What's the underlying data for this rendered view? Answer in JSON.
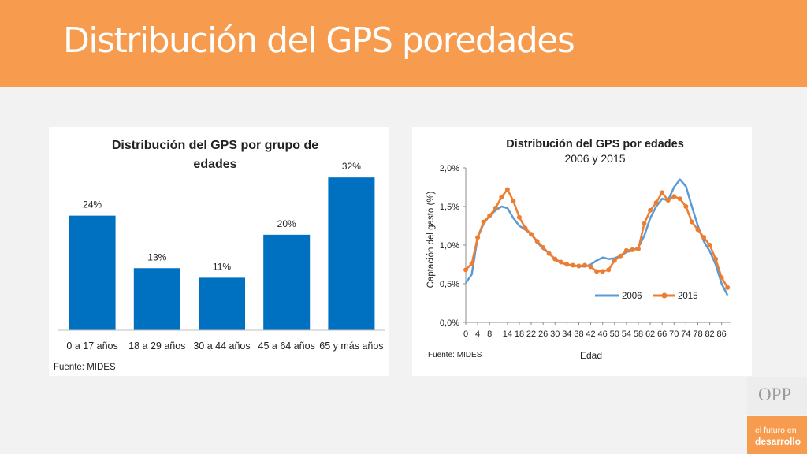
{
  "slide": {
    "title": "Distribución del GPS poredades",
    "logo": "OPP",
    "tagline_line1": "el futuro en",
    "tagline_line2": "desarrollo"
  },
  "colors": {
    "header_orange": "#f79c4e",
    "bar_blue": "#0070c0",
    "line_2006": "#5b9bd5",
    "line_2015": "#ed7d31"
  },
  "chart_data": [
    {
      "type": "bar",
      "title_line1": "Distribución  del GPS por grupo de",
      "title_line2": "edades",
      "categories": [
        "0 a 17 años",
        "18 a 29 años",
        "30 a 44 años",
        "45 a 64 años",
        "65 y más años"
      ],
      "values": [
        24,
        13,
        11,
        20,
        32
      ],
      "value_labels": [
        "24%",
        "13%",
        "11%",
        "20%",
        "32%"
      ],
      "ylim": [
        0,
        35
      ],
      "source": "Fuente: MIDES"
    },
    {
      "type": "line",
      "title": "Distribución del GPS por edades",
      "subtitle": "2006 y 2015",
      "ylabel": "Captación del gasto (%)",
      "xlabel": "Edad",
      "ylim": [
        0,
        2.0
      ],
      "yticks": [
        "2,0%",
        "1,5%",
        "1,0%",
        "0,5%",
        "0,0%"
      ],
      "xticks": [
        "0",
        "4",
        "8",
        "14",
        "18",
        "22",
        "26",
        "30",
        "34",
        "38",
        "42",
        "46",
        "50",
        "54",
        "58",
        "62",
        "66",
        "70",
        "74",
        "78",
        "82",
        "86"
      ],
      "source": "Fuente: MIDES",
      "legend_position": "bottom-right",
      "series": [
        {
          "name": "2006",
          "x": [
            0,
            2,
            4,
            6,
            8,
            10,
            12,
            14,
            16,
            18,
            20,
            22,
            24,
            26,
            28,
            30,
            32,
            34,
            36,
            38,
            40,
            42,
            44,
            46,
            48,
            50,
            52,
            54,
            56,
            58,
            60,
            62,
            64,
            66,
            68,
            70,
            72,
            74,
            76,
            78,
            80,
            82,
            84,
            86,
            88
          ],
          "values": [
            0.51,
            0.62,
            1.1,
            1.28,
            1.38,
            1.45,
            1.5,
            1.48,
            1.35,
            1.25,
            1.2,
            1.14,
            1.04,
            0.95,
            0.9,
            0.81,
            0.77,
            0.75,
            0.73,
            0.73,
            0.72,
            0.75,
            0.8,
            0.84,
            0.82,
            0.83,
            0.86,
            0.91,
            0.93,
            0.97,
            1.12,
            1.35,
            1.5,
            1.6,
            1.58,
            1.75,
            1.85,
            1.76,
            1.5,
            1.25,
            1.05,
            0.92,
            0.75,
            0.5,
            0.35
          ]
        },
        {
          "name": "2015",
          "x": [
            0,
            2,
            4,
            6,
            8,
            10,
            12,
            14,
            16,
            18,
            20,
            22,
            24,
            26,
            28,
            30,
            32,
            34,
            36,
            38,
            40,
            42,
            44,
            46,
            48,
            50,
            52,
            54,
            56,
            58,
            60,
            62,
            64,
            66,
            68,
            70,
            72,
            74,
            76,
            78,
            80,
            82,
            84,
            86,
            88
          ],
          "values": [
            0.68,
            0.76,
            1.1,
            1.3,
            1.38,
            1.48,
            1.62,
            1.72,
            1.57,
            1.36,
            1.22,
            1.14,
            1.05,
            0.97,
            0.89,
            0.82,
            0.78,
            0.75,
            0.74,
            0.73,
            0.74,
            0.72,
            0.66,
            0.66,
            0.68,
            0.8,
            0.86,
            0.93,
            0.94,
            0.95,
            1.28,
            1.45,
            1.55,
            1.68,
            1.58,
            1.63,
            1.6,
            1.5,
            1.3,
            1.2,
            1.1,
            1.0,
            0.82,
            0.58,
            0.45
          ]
        }
      ]
    }
  ]
}
